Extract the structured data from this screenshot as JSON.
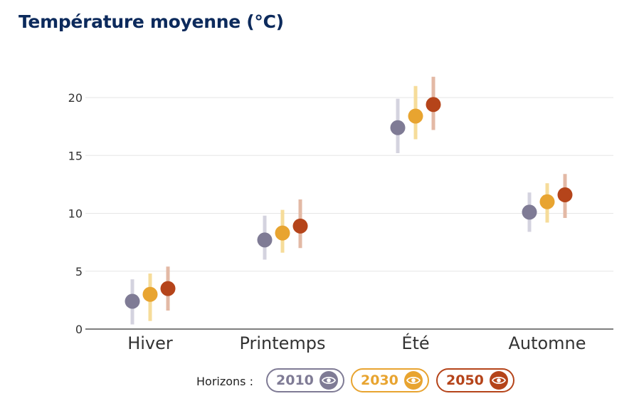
{
  "title": "Température moyenne (°C)",
  "legend": {
    "label": "Horizons :",
    "items": [
      {
        "label": "2010",
        "color": "#7f7b95",
        "icon": "eye-icon"
      },
      {
        "label": "2030",
        "color": "#e8a430",
        "icon": "eye-icon"
      },
      {
        "label": "2050",
        "color": "#b5441a",
        "icon": "eye-icon"
      }
    ]
  },
  "chart_data": {
    "type": "scatter",
    "title": "Température moyenne (°C)",
    "xlabel": "",
    "ylabel": "",
    "categories": [
      "Hiver",
      "Printemps",
      "Été",
      "Automne"
    ],
    "ylim": [
      0,
      22
    ],
    "yticks": [
      0,
      5,
      10,
      15,
      20
    ],
    "grid": true,
    "legend_position": "bottom",
    "series": [
      {
        "name": "2010",
        "color": "#7f7b95",
        "bar_color": "#d4d3df",
        "values": [
          2.4,
          7.7,
          17.4,
          10.1
        ],
        "low": [
          0.4,
          6.0,
          15.2,
          8.4
        ],
        "high": [
          4.3,
          9.8,
          19.9,
          11.8
        ]
      },
      {
        "name": "2030",
        "color": "#e8a430",
        "bar_color": "#f6dc9a",
        "values": [
          3.0,
          8.3,
          18.4,
          11.0
        ],
        "low": [
          0.7,
          6.6,
          16.4,
          9.2
        ],
        "high": [
          4.8,
          10.3,
          21.0,
          12.6
        ]
      },
      {
        "name": "2050",
        "color": "#b5441a",
        "bar_color": "#e3b9a5",
        "values": [
          3.5,
          8.9,
          19.4,
          11.6
        ],
        "low": [
          1.6,
          7.0,
          17.2,
          9.6
        ],
        "high": [
          5.4,
          11.2,
          21.8,
          13.4
        ]
      }
    ]
  }
}
